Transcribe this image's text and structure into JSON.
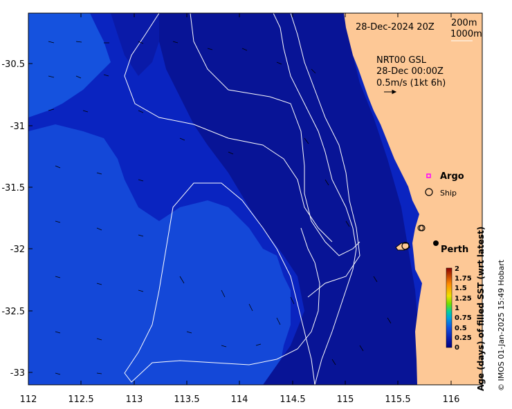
{
  "map": {
    "title": "28-Dec-2024 20Z",
    "depth_contours": [
      "200m",
      "1000m"
    ],
    "current_product": "NRT00 GSL",
    "current_time": "28-Dec 00:00Z",
    "current_scale": "0.5m/s (1kt 6h)",
    "x_ticks": [
      "112",
      "112.5",
      "113",
      "113.5",
      "114",
      "114.5",
      "115",
      "115.5",
      "116"
    ],
    "y_ticks": [
      "-30.5",
      "-31",
      "-31.5",
      "-32",
      "-32.5",
      "-33"
    ],
    "legend": {
      "argo": "Argo",
      "ship": "Ship"
    },
    "city": "Perth",
    "colorbar": {
      "title": "Age (days) of filled SST (wrt latest)",
      "ticks": [
        "2",
        "1.75",
        "1.5",
        "1.25",
        "1",
        "0.75",
        "0.5",
        "0.25",
        "0"
      ],
      "colors": [
        "#8b0000",
        "#d93a00",
        "#ff9a00",
        "#f7e000",
        "#8fe000",
        "#00d080",
        "#00a0e0",
        "#1040d0",
        "#000080"
      ]
    },
    "credit": "© IMOS 01-Jan-2025 15:49 Hobart",
    "colors": {
      "land": "#fdc896",
      "ocean_deep": "#08129a",
      "ocean_mid": "#0a26c8",
      "ocean_light": "#1650e0"
    }
  }
}
